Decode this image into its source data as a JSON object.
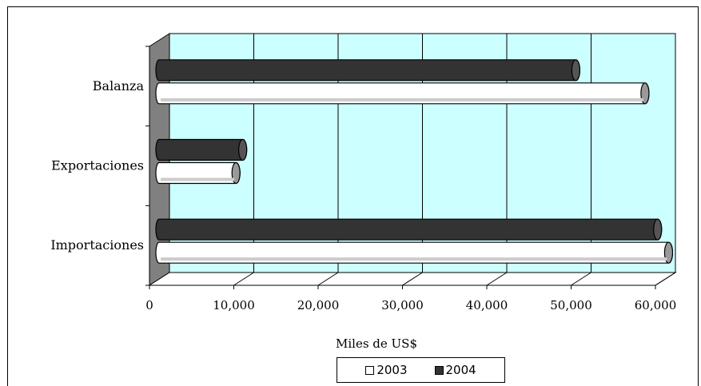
{
  "chart_data": {
    "type": "bar",
    "orientation": "horizontal",
    "categories": [
      "Balanza",
      "Exportaciones",
      "Importaciones"
    ],
    "series": [
      {
        "name": "2003",
        "values": [
          58000,
          9500,
          60800
        ],
        "color": "#ffffff"
      },
      {
        "name": "2004",
        "values": [
          49800,
          10300,
          59500
        ],
        "color": "#333333"
      }
    ],
    "x_ticks": [
      "0",
      "10,000",
      "20,000",
      "30,000",
      "40,000",
      "50,000",
      "60,000"
    ],
    "xlim": [
      0,
      60000
    ],
    "xlabel": "Miles de US$",
    "legend_position": "bottom",
    "grid": true,
    "plot_background": "#ccffff",
    "side_wall_color": "#808080"
  }
}
